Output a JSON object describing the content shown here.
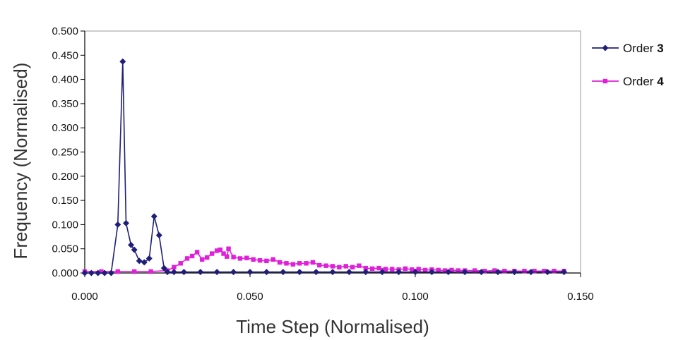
{
  "chart_data": {
    "type": "line",
    "title": "",
    "xlabel": "Time Step (Normalised)",
    "ylabel": "Frequency (Normalised)",
    "xlim": [
      0,
      0.15
    ],
    "ylim": [
      0,
      0.5
    ],
    "x_ticks": [
      "0.000",
      "0.050",
      "0.100",
      "0.150"
    ],
    "y_ticks": [
      "0.000",
      "0.050",
      "0.100",
      "0.150",
      "0.200",
      "0.250",
      "0.300",
      "0.350",
      "0.400",
      "0.450",
      "0.500"
    ],
    "grid": false,
    "legend_position": "right",
    "series": [
      {
        "name": "Order 3",
        "label_word": "Order",
        "label_num": "3",
        "color": "#1f1f7a",
        "marker": "diamond",
        "points": [
          [
            0,
            0
          ],
          [
            0.002,
            0
          ],
          [
            0.004,
            0
          ],
          [
            0.006,
            0
          ],
          [
            0.008,
            0
          ],
          [
            0.01,
            0.1
          ],
          [
            0.0115,
            0.437
          ],
          [
            0.0125,
            0.103
          ],
          [
            0.014,
            0.058
          ],
          [
            0.015,
            0.048
          ],
          [
            0.0165,
            0.025
          ],
          [
            0.018,
            0.022
          ],
          [
            0.0195,
            0.03
          ],
          [
            0.021,
            0.117
          ],
          [
            0.0225,
            0.078
          ],
          [
            0.024,
            0.01
          ],
          [
            0.025,
            0.002
          ],
          [
            0.027,
            0.002
          ],
          [
            0.03,
            0.002
          ],
          [
            0.035,
            0.002
          ],
          [
            0.04,
            0.002
          ],
          [
            0.045,
            0.002
          ],
          [
            0.05,
            0.002
          ],
          [
            0.055,
            0.002
          ],
          [
            0.06,
            0.002
          ],
          [
            0.065,
            0.002
          ],
          [
            0.07,
            0.002
          ],
          [
            0.075,
            0.002
          ],
          [
            0.08,
            0.002
          ],
          [
            0.085,
            0.002
          ],
          [
            0.09,
            0.002
          ],
          [
            0.095,
            0.002
          ],
          [
            0.1,
            0.002
          ],
          [
            0.105,
            0.002
          ],
          [
            0.11,
            0.002
          ],
          [
            0.115,
            0.002
          ],
          [
            0.12,
            0.002
          ],
          [
            0.125,
            0.002
          ],
          [
            0.13,
            0.002
          ],
          [
            0.135,
            0.002
          ],
          [
            0.14,
            0.002
          ],
          [
            0.145,
            0.002
          ]
        ]
      },
      {
        "name": "Order 4",
        "label_word": "Order",
        "label_num": "4",
        "color": "#e020d8",
        "marker": "square",
        "points": [
          [
            0,
            0.003
          ],
          [
            0.005,
            0.003
          ],
          [
            0.01,
            0.003
          ],
          [
            0.015,
            0.003
          ],
          [
            0.02,
            0.003
          ],
          [
            0.025,
            0.005
          ],
          [
            0.027,
            0.012
          ],
          [
            0.029,
            0.02
          ],
          [
            0.031,
            0.03
          ],
          [
            0.0325,
            0.035
          ],
          [
            0.034,
            0.043
          ],
          [
            0.0355,
            0.028
          ],
          [
            0.037,
            0.032
          ],
          [
            0.0385,
            0.04
          ],
          [
            0.04,
            0.046
          ],
          [
            0.041,
            0.048
          ],
          [
            0.042,
            0.04
          ],
          [
            0.043,
            0.034
          ],
          [
            0.0435,
            0.05
          ],
          [
            0.045,
            0.033
          ],
          [
            0.047,
            0.03
          ],
          [
            0.049,
            0.031
          ],
          [
            0.051,
            0.028
          ],
          [
            0.053,
            0.026
          ],
          [
            0.055,
            0.025
          ],
          [
            0.057,
            0.028
          ],
          [
            0.059,
            0.022
          ],
          [
            0.061,
            0.02
          ],
          [
            0.063,
            0.018
          ],
          [
            0.065,
            0.02
          ],
          [
            0.067,
            0.02
          ],
          [
            0.069,
            0.022
          ],
          [
            0.071,
            0.016
          ],
          [
            0.073,
            0.015
          ],
          [
            0.075,
            0.014
          ],
          [
            0.077,
            0.012
          ],
          [
            0.079,
            0.014
          ],
          [
            0.081,
            0.012
          ],
          [
            0.083,
            0.015
          ],
          [
            0.085,
            0.01
          ],
          [
            0.087,
            0.009
          ],
          [
            0.089,
            0.01
          ],
          [
            0.091,
            0.008
          ],
          [
            0.093,
            0.008
          ],
          [
            0.095,
            0.007
          ],
          [
            0.097,
            0.009
          ],
          [
            0.099,
            0.007
          ],
          [
            0.101,
            0.008
          ],
          [
            0.103,
            0.006
          ],
          [
            0.105,
            0.007
          ],
          [
            0.107,
            0.006
          ],
          [
            0.109,
            0.005
          ],
          [
            0.111,
            0.006
          ],
          [
            0.113,
            0.005
          ],
          [
            0.115,
            0.005
          ],
          [
            0.118,
            0.005
          ],
          [
            0.121,
            0.004
          ],
          [
            0.124,
            0.005
          ],
          [
            0.127,
            0.004
          ],
          [
            0.13,
            0.004
          ],
          [
            0.133,
            0.004
          ],
          [
            0.136,
            0.004
          ],
          [
            0.139,
            0.004
          ],
          [
            0.142,
            0.004
          ],
          [
            0.145,
            0.004
          ]
        ]
      }
    ]
  }
}
